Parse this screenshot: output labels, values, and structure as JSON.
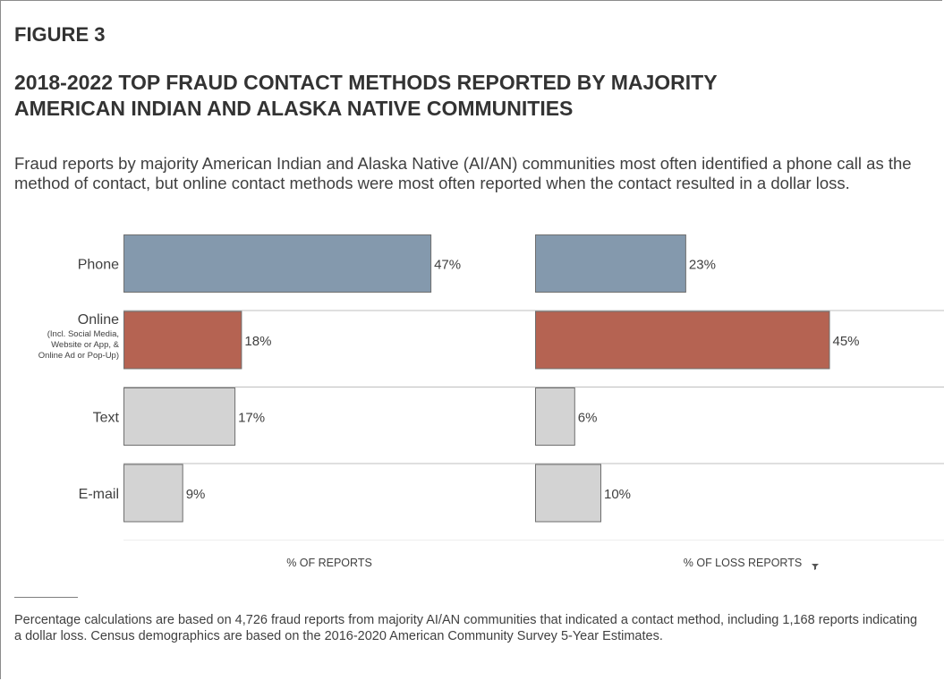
{
  "figure_label": "FIGURE 3",
  "title_lines": [
    "2018-2022 TOP FRAUD CONTACT METHODS REPORTED BY MAJORITY",
    "AMERICAN INDIAN AND ALASKA NATIVE COMMUNITIES"
  ],
  "subtitle": "Fraud reports by majority American Indian and Alaska Native (AI/AN) communities most often identified a phone call as the method of contact, but online contact methods were most often reported when the contact resulted in a dollar loss.",
  "footnote": "Percentage calculations are based on 4,726 fraud reports from majority AI/AN communities that indicated a contact method, including 1,168 reports indicating a dollar loss. Census demographics are based on the 2016-2020 American Community Survey 5-Year Estimates.",
  "chart_data": {
    "type": "bar",
    "orientation": "horizontal",
    "categories": [
      {
        "label": "Phone",
        "sublabel": []
      },
      {
        "label": "Online",
        "sublabel": [
          "(Incl. Social Media,",
          "Website or App, &",
          "Online Ad or Pop-Up)"
        ]
      },
      {
        "label": "Text",
        "sublabel": []
      },
      {
        "label": "E-mail",
        "sublabel": []
      }
    ],
    "panels": [
      {
        "axis_title": "% OF REPORTS",
        "values": [
          47,
          18,
          17,
          9
        ],
        "value_labels": [
          "47%",
          "18%",
          "17%",
          "9%"
        ]
      },
      {
        "axis_title": "% OF LOSS REPORTS",
        "values": [
          23,
          45,
          6,
          10
        ],
        "value_labels": [
          "23%",
          "45%",
          "6%",
          "10%"
        ]
      }
    ],
    "xlim": [
      0,
      100
    ],
    "colors": [
      "#8499ad",
      "#b56352",
      "#d3d3d3",
      "#d3d3d3"
    ],
    "bar_border": "#6f6f6f",
    "row_divider_color": "#bfbfbf",
    "grid": false
  }
}
